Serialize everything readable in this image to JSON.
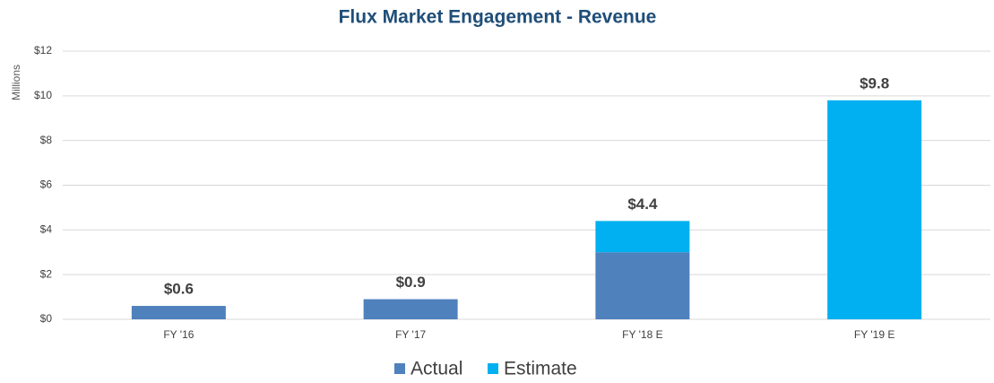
{
  "chart_data": {
    "type": "stacked_bar",
    "title": "Flux Market Engagement - Revenue",
    "y_label": "Millions",
    "categories": [
      "FY '16",
      "FY '17",
      "FY '18 E",
      "FY '19 E"
    ],
    "series": [
      {
        "name": "Actual",
        "color": "#4f81bd",
        "values": [
          0.6,
          0.9,
          3.0,
          null
        ]
      },
      {
        "name": "Estimate",
        "color": "#00b0f0",
        "values": [
          null,
          null,
          1.4,
          9.8
        ]
      }
    ],
    "total_labels": [
      "$0.6",
      "$0.9",
      "$4.4",
      "$9.8"
    ],
    "ylim": [
      0,
      12
    ],
    "yticks": [
      {
        "value": 0,
        "label": "$0"
      },
      {
        "value": 2,
        "label": "$2"
      },
      {
        "value": 4,
        "label": "$4"
      },
      {
        "value": 6,
        "label": "$6"
      },
      {
        "value": 8,
        "label": "$8"
      },
      {
        "value": 10,
        "label": "$10"
      },
      {
        "value": 12,
        "label": "$12"
      }
    ],
    "grid": true,
    "legend": "bottom"
  }
}
